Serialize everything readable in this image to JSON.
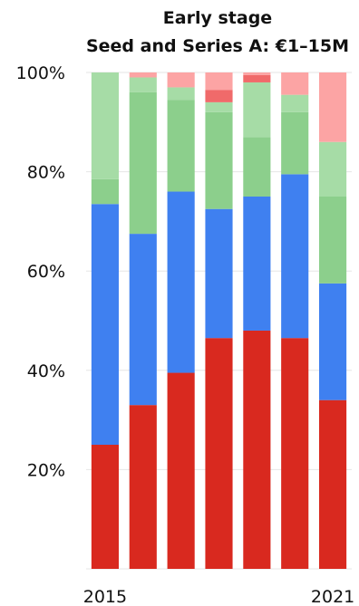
{
  "chart_data": {
    "type": "bar",
    "stacked": true,
    "normalized": true,
    "title": "Early stage",
    "subtitle": "Seed and Series A: €1–15M",
    "xlabel": "",
    "ylabel": "",
    "ylim": [
      0,
      100
    ],
    "grid": true,
    "legend": "none",
    "y_ticks": [
      "20%",
      "40%",
      "60%",
      "80%",
      "100%"
    ],
    "y_tick_values": [
      20,
      40,
      60,
      80,
      100
    ],
    "x": [
      2015,
      2016,
      2017,
      2018,
      2019,
      2020,
      2021
    ],
    "x_tick_labels": [
      "2015",
      "",
      "",
      "",
      "",
      "",
      "2021"
    ],
    "series": [
      {
        "color": "#d9291f",
        "values": [
          25,
          33,
          39.5,
          46.5,
          48,
          46.5,
          34
        ]
      },
      {
        "color": "#3f80f0",
        "values": [
          48.5,
          34.5,
          36.5,
          26,
          27,
          33,
          23.5
        ]
      },
      {
        "color": "#8ccf8c",
        "values": [
          5,
          28.5,
          18.5,
          19.5,
          12,
          12.5,
          17.5
        ]
      },
      {
        "color": "#a6dca6",
        "values": [
          21.5,
          3,
          2.5,
          2,
          11,
          3.5,
          11
        ]
      },
      {
        "color": "#f06a6a",
        "values": [
          0,
          0,
          0,
          2.5,
          1.5,
          0,
          0
        ]
      },
      {
        "color": "#fca4a4",
        "values": [
          0,
          1,
          3,
          3.5,
          0.5,
          4.5,
          14
        ]
      }
    ]
  }
}
